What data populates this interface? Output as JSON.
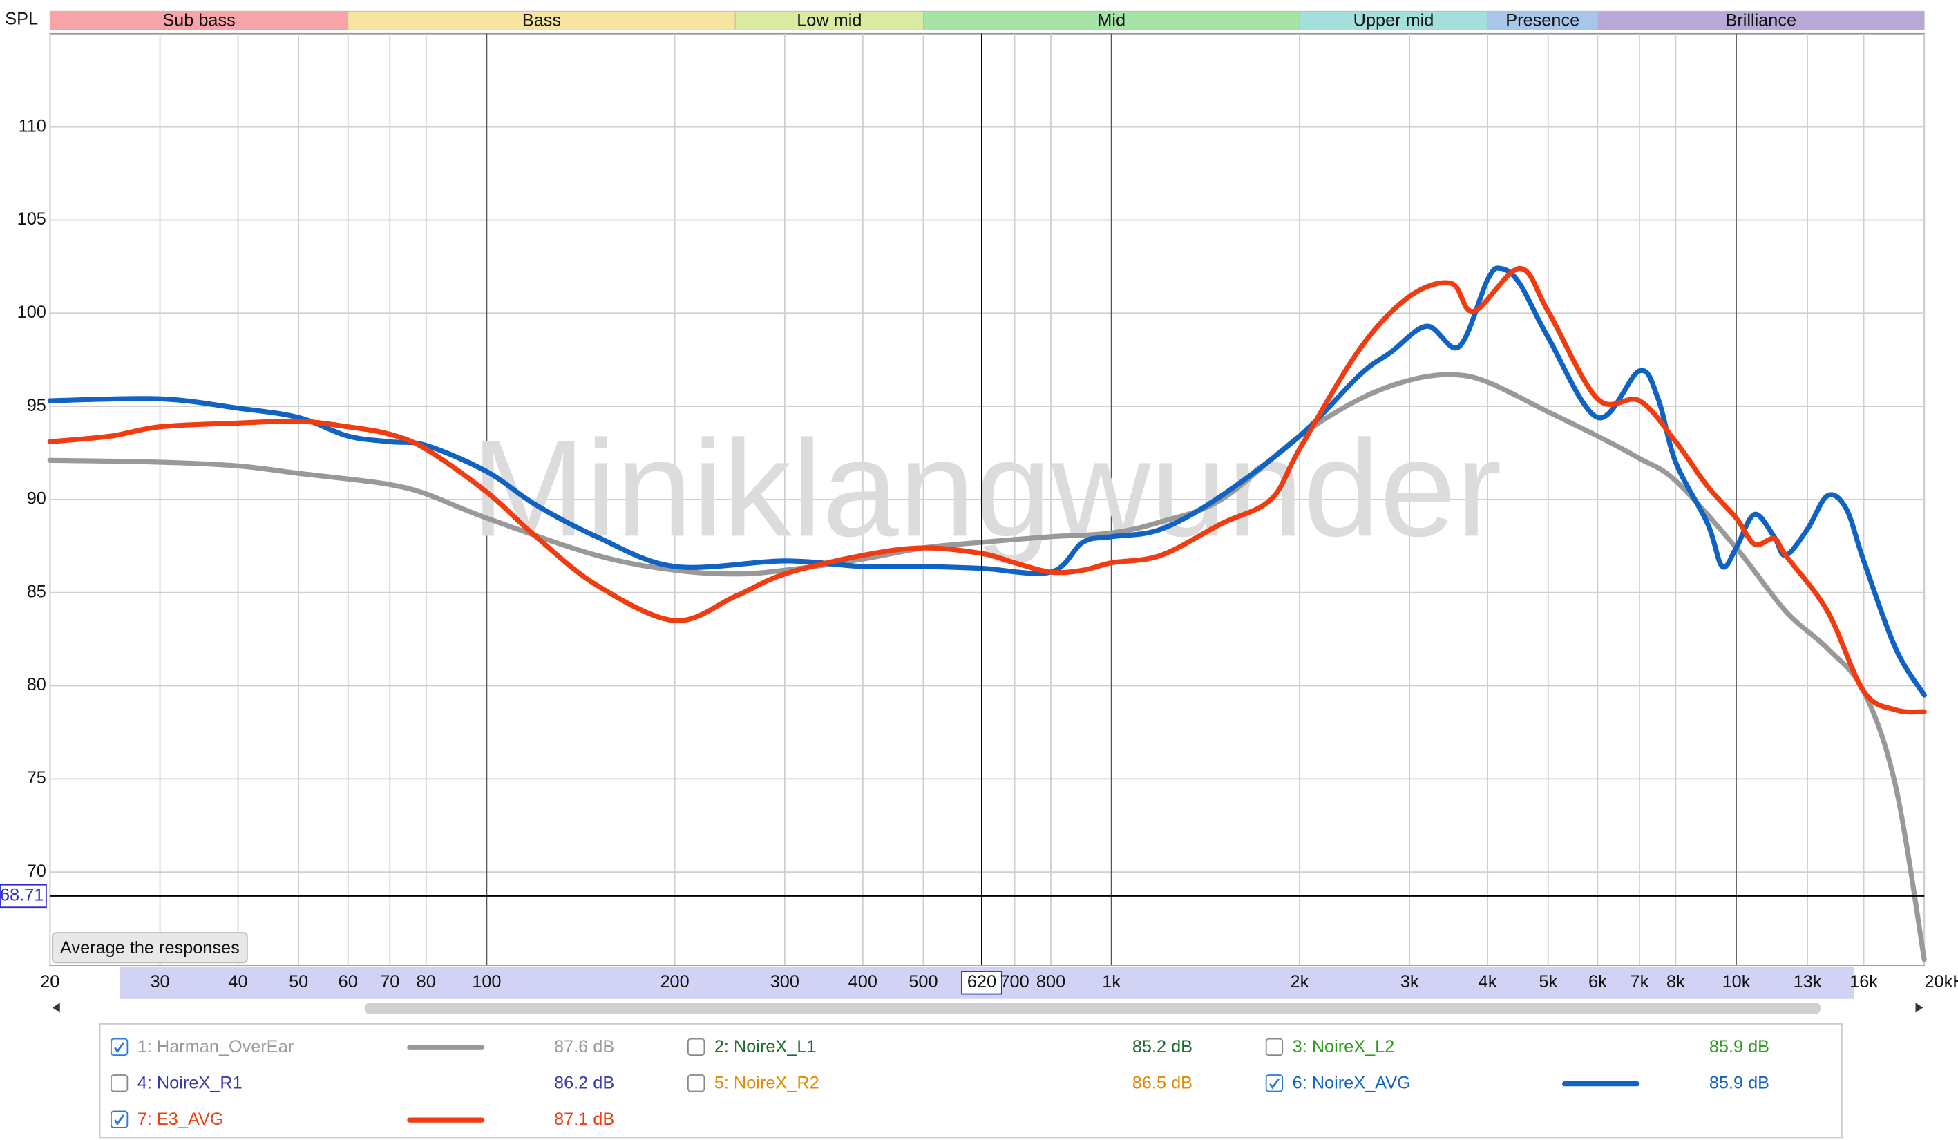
{
  "chart_data": {
    "type": "line",
    "ylabel": "SPL",
    "watermark": "Miniklangwunder",
    "log_x": true,
    "grid": true,
    "xlim": [
      20,
      20000
    ],
    "ylim": [
      65,
      115
    ],
    "xticks": [
      20,
      30,
      40,
      50,
      60,
      70,
      80,
      100,
      200,
      300,
      400,
      500,
      700,
      800,
      {
        "value": 1000,
        "label": "1k"
      },
      {
        "value": 2000,
        "label": "2k"
      },
      {
        "value": 3000,
        "label": "3k"
      },
      {
        "value": 4000,
        "label": "4k"
      },
      {
        "value": 5000,
        "label": "5k"
      },
      {
        "value": 6000,
        "label": "6k"
      },
      {
        "value": 7000,
        "label": "7k"
      },
      {
        "value": 8000,
        "label": "8k"
      },
      {
        "value": 10000,
        "label": "10k"
      },
      {
        "value": 13000,
        "label": "13k"
      },
      {
        "value": 16000,
        "label": "16k"
      },
      {
        "value": 20000,
        "label": "20kHz"
      }
    ],
    "yticks": [
      70,
      75,
      80,
      85,
      90,
      95,
      100,
      105,
      110
    ],
    "cursor": {
      "x": 620,
      "y": 68.71
    },
    "bands": [
      {
        "label": "Sub bass",
        "from": 20,
        "to": 60,
        "color": "#f7a3a8"
      },
      {
        "label": "Bass",
        "from": 60,
        "to": 250,
        "color": "#f7e4a0"
      },
      {
        "label": "Low mid",
        "from": 250,
        "to": 500,
        "color": "#d8eba0"
      },
      {
        "label": "Mid",
        "from": 500,
        "to": 2000,
        "color": "#a6e3a6"
      },
      {
        "label": "Upper mid",
        "from": 2000,
        "to": 4000,
        "color": "#a3e0dc"
      },
      {
        "label": "Presence",
        "from": 4000,
        "to": 6000,
        "color": "#a8c6ea"
      },
      {
        "label": "Brilliance",
        "from": 6000,
        "to": 20000,
        "color": "#b8a8d6"
      }
    ],
    "series": [
      {
        "name": "1: Harman_OverEar",
        "color": "#999999",
        "checked": true,
        "level": {
          "value": 87.6,
          "label": "87.6 dB"
        },
        "x": [
          20,
          30,
          40,
          50,
          60,
          70,
          80,
          100,
          150,
          200,
          250,
          300,
          400,
          500,
          620,
          800,
          1000,
          1200,
          1500,
          2000,
          2500,
          3000,
          3500,
          4000,
          5000,
          6000,
          7000,
          8000,
          10000,
          12000,
          14000,
          16000,
          18000,
          20000
        ],
        "values": [
          92.1,
          92.0,
          91.8,
          91.4,
          91.1,
          90.8,
          90.3,
          89.0,
          87.0,
          86.2,
          86.0,
          86.2,
          86.8,
          87.4,
          87.7,
          88.0,
          88.2,
          88.8,
          90.0,
          93.4,
          95.4,
          96.4,
          96.7,
          96.3,
          94.7,
          93.4,
          92.2,
          91.0,
          87.4,
          84.0,
          82.0,
          79.7,
          74.6,
          65.3
        ]
      },
      {
        "name": "2: NoireX_L1",
        "color": "#1a6b2a",
        "checked": false,
        "level": {
          "value": 85.2,
          "label": "85.2 dB"
        }
      },
      {
        "name": "3: NoireX_L2",
        "color": "#2e9a1c",
        "checked": false,
        "level": {
          "value": 85.9,
          "label": "85.9 dB"
        }
      },
      {
        "name": "4: NoireX_R1",
        "color": "#3a3aa8",
        "checked": false,
        "level": {
          "value": 86.2,
          "label": "86.2 dB"
        }
      },
      {
        "name": "5: NoireX_R2",
        "color": "#e08a00",
        "checked": false,
        "level": {
          "value": 86.5,
          "label": "86.5 dB"
        }
      },
      {
        "name": "6: NoireX_AVG",
        "color": "#1063c2",
        "checked": true,
        "level": {
          "value": 85.9,
          "label": "85.9 dB"
        },
        "x": [
          20,
          30,
          40,
          50,
          60,
          70,
          80,
          100,
          120,
          150,
          200,
          300,
          400,
          500,
          620,
          800,
          900,
          1000,
          1200,
          1500,
          2000,
          2500,
          2800,
          3200,
          3600,
          4000,
          4200,
          4500,
          5000,
          6000,
          7000,
          7500,
          8000,
          9000,
          9500,
          10000,
          10700,
          11500,
          12000,
          13000,
          14000,
          15000,
          16000,
          18000,
          20000
        ],
        "values": [
          95.3,
          95.4,
          94.9,
          94.4,
          93.4,
          93.1,
          92.9,
          91.5,
          89.7,
          88.0,
          86.4,
          86.7,
          86.4,
          86.4,
          86.3,
          86.1,
          87.7,
          88.0,
          88.4,
          90.2,
          93.4,
          96.7,
          97.9,
          99.3,
          98.2,
          101.8,
          102.4,
          101.6,
          98.7,
          94.4,
          96.9,
          95.4,
          92.0,
          88.7,
          86.4,
          87.4,
          89.2,
          88.0,
          87.0,
          88.4,
          90.2,
          89.5,
          86.7,
          82.0,
          79.5
        ]
      },
      {
        "name": "7: E3_AVG",
        "color": "#f03c10",
        "checked": true,
        "level": {
          "value": 87.1,
          "label": "87.1 dB"
        },
        "x": [
          20,
          25,
          30,
          40,
          50,
          60,
          70,
          80,
          100,
          120,
          150,
          200,
          250,
          300,
          400,
          500,
          620,
          700,
          800,
          900,
          1000,
          1200,
          1500,
          1800,
          2000,
          2500,
          3000,
          3500,
          3800,
          4500,
          5000,
          6000,
          7000,
          8000,
          9000,
          10000,
          10700,
          11500,
          12000,
          14000,
          16000,
          18000,
          20000
        ],
        "values": [
          93.1,
          93.4,
          93.9,
          94.1,
          94.2,
          93.9,
          93.5,
          92.7,
          90.4,
          88.0,
          85.4,
          83.5,
          84.8,
          86.0,
          87.0,
          87.4,
          87.1,
          86.6,
          86.1,
          86.2,
          86.6,
          87.0,
          88.7,
          90.0,
          92.7,
          98.1,
          100.9,
          101.6,
          100.1,
          102.4,
          100.1,
          95.4,
          95.3,
          93.1,
          90.7,
          89.0,
          87.6,
          87.9,
          87.0,
          84.0,
          79.7,
          78.7,
          78.6
        ]
      }
    ]
  },
  "controls": {
    "average_button": "Average the responses"
  }
}
